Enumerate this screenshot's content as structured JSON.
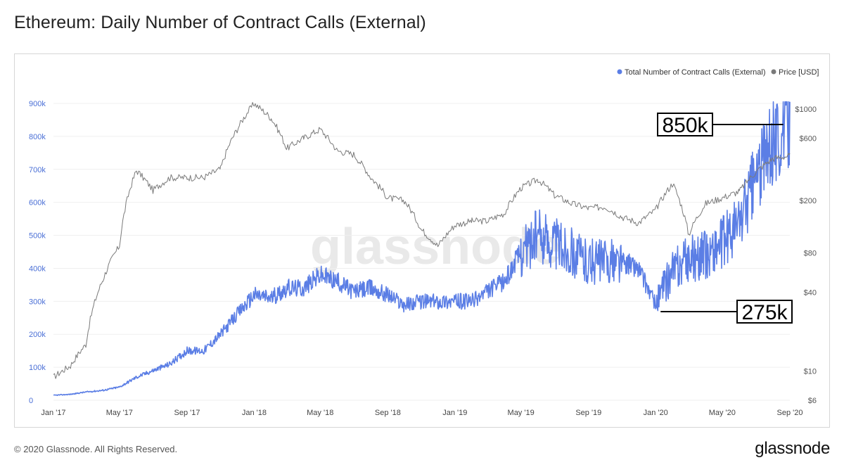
{
  "header": {
    "title": "Ethereum: Daily Number of Contract Calls (External)"
  },
  "footer": {
    "copyright": "© 2020 Glassnode. All Rights Reserved.",
    "brand": "glassnode"
  },
  "watermark": "glassnode",
  "colors": {
    "calls_series": "#5b7ee5",
    "price_series": "#7a7a7a",
    "left_axis_text": "#4a6fd6",
    "right_axis_text": "#555555",
    "grid": "#efefef"
  },
  "chart_data": {
    "type": "line",
    "title": "Ethereum: Daily Number of Contract Calls (External)",
    "legend": {
      "placement": "top-right",
      "entries": [
        "Total Number of Contract Calls (External)",
        "Price [USD]"
      ]
    },
    "x_ticks": [
      "Jan '17",
      "May '17",
      "Sep '17",
      "Jan '18",
      "May '18",
      "Sep '18",
      "Jan '19",
      "May '19",
      "Sep '19",
      "Jan '20",
      "May '20",
      "Sep '20"
    ],
    "x_range": [
      "2017-01-01",
      "2020-09-01"
    ],
    "y_left": {
      "ticks": [
        "0",
        "100k",
        "200k",
        "300k",
        "400k",
        "500k",
        "600k",
        "700k",
        "800k",
        "900k"
      ],
      "range": [
        0,
        900000
      ]
    },
    "y_right": {
      "scale": "log",
      "ticks": [
        "$6",
        "$10",
        "$40",
        "$80",
        "$200",
        "$600",
        "$1000"
      ],
      "tick_values": [
        6,
        10,
        40,
        80,
        200,
        600,
        1000
      ]
    },
    "grid": true,
    "series": [
      {
        "name": "Total Number of Contract Calls (External)",
        "axis": "left",
        "points": [
          [
            "2017-01-01",
            15000
          ],
          [
            "2017-02-01",
            18000
          ],
          [
            "2017-03-01",
            25000
          ],
          [
            "2017-04-01",
            30000
          ],
          [
            "2017-05-01",
            40000
          ],
          [
            "2017-06-01",
            70000
          ],
          [
            "2017-07-01",
            90000
          ],
          [
            "2017-08-01",
            110000
          ],
          [
            "2017-09-01",
            150000
          ],
          [
            "2017-10-01",
            150000
          ],
          [
            "2017-11-01",
            200000
          ],
          [
            "2017-12-01",
            260000
          ],
          [
            "2018-01-01",
            320000
          ],
          [
            "2018-02-01",
            310000
          ],
          [
            "2018-03-01",
            340000
          ],
          [
            "2018-04-01",
            340000
          ],
          [
            "2018-05-01",
            380000
          ],
          [
            "2018-06-01",
            360000
          ],
          [
            "2018-07-01",
            330000
          ],
          [
            "2018-08-01",
            340000
          ],
          [
            "2018-09-01",
            320000
          ],
          [
            "2018-10-01",
            290000
          ],
          [
            "2018-11-01",
            300000
          ],
          [
            "2018-12-01",
            300000
          ],
          [
            "2019-01-01",
            300000
          ],
          [
            "2019-02-01",
            300000
          ],
          [
            "2019-03-01",
            330000
          ],
          [
            "2019-04-01",
            360000
          ],
          [
            "2019-05-01",
            450000
          ],
          [
            "2019-06-01",
            500000
          ],
          [
            "2019-07-01",
            480000
          ],
          [
            "2019-08-01",
            450000
          ],
          [
            "2019-09-01",
            420000
          ],
          [
            "2019-10-01",
            420000
          ],
          [
            "2019-11-01",
            420000
          ],
          [
            "2019-12-01",
            400000
          ],
          [
            "2020-01-01",
            290000
          ],
          [
            "2020-02-01",
            390000
          ],
          [
            "2020-03-01",
            430000
          ],
          [
            "2020-04-01",
            440000
          ],
          [
            "2020-05-01",
            480000
          ],
          [
            "2020-06-01",
            540000
          ],
          [
            "2020-07-01",
            680000
          ],
          [
            "2020-08-01",
            780000
          ],
          [
            "2020-09-01",
            850000
          ]
        ]
      },
      {
        "name": "Price [USD]",
        "axis": "right",
        "points": [
          [
            "2017-01-01",
            9
          ],
          [
            "2017-02-01",
            11
          ],
          [
            "2017-03-01",
            16
          ],
          [
            "2017-04-01",
            50
          ],
          [
            "2017-05-01",
            90
          ],
          [
            "2017-06-01",
            340
          ],
          [
            "2017-07-01",
            240
          ],
          [
            "2017-08-01",
            300
          ],
          [
            "2017-09-01",
            300
          ],
          [
            "2017-10-01",
            300
          ],
          [
            "2017-11-01",
            350
          ],
          [
            "2017-12-01",
            700
          ],
          [
            "2018-01-01",
            1100
          ],
          [
            "2018-02-01",
            850
          ],
          [
            "2018-03-01",
            500
          ],
          [
            "2018-04-01",
            600
          ],
          [
            "2018-05-01",
            700
          ],
          [
            "2018-06-01",
            480
          ],
          [
            "2018-07-01",
            450
          ],
          [
            "2018-08-01",
            300
          ],
          [
            "2018-09-01",
            210
          ],
          [
            "2018-10-01",
            200
          ],
          [
            "2018-11-01",
            120
          ],
          [
            "2018-12-01",
            90
          ],
          [
            "2019-01-01",
            130
          ],
          [
            "2019-02-01",
            140
          ],
          [
            "2019-03-01",
            140
          ],
          [
            "2019-04-01",
            160
          ],
          [
            "2019-05-01",
            250
          ],
          [
            "2019-06-01",
            290
          ],
          [
            "2019-07-01",
            220
          ],
          [
            "2019-08-01",
            190
          ],
          [
            "2019-09-01",
            175
          ],
          [
            "2019-10-01",
            180
          ],
          [
            "2019-11-01",
            150
          ],
          [
            "2019-12-01",
            135
          ],
          [
            "2020-01-01",
            170
          ],
          [
            "2020-02-01",
            270
          ],
          [
            "2020-03-01",
            110
          ],
          [
            "2020-04-01",
            190
          ],
          [
            "2020-05-01",
            210
          ],
          [
            "2020-06-01",
            235
          ],
          [
            "2020-07-01",
            330
          ],
          [
            "2020-08-01",
            420
          ],
          [
            "2020-09-01",
            440
          ]
        ]
      }
    ],
    "annotations": [
      {
        "text": "850k",
        "date": "2020-08-20",
        "value": 850000
      },
      {
        "text": "275k",
        "date": "2020-01-10",
        "value": 275000
      }
    ]
  }
}
